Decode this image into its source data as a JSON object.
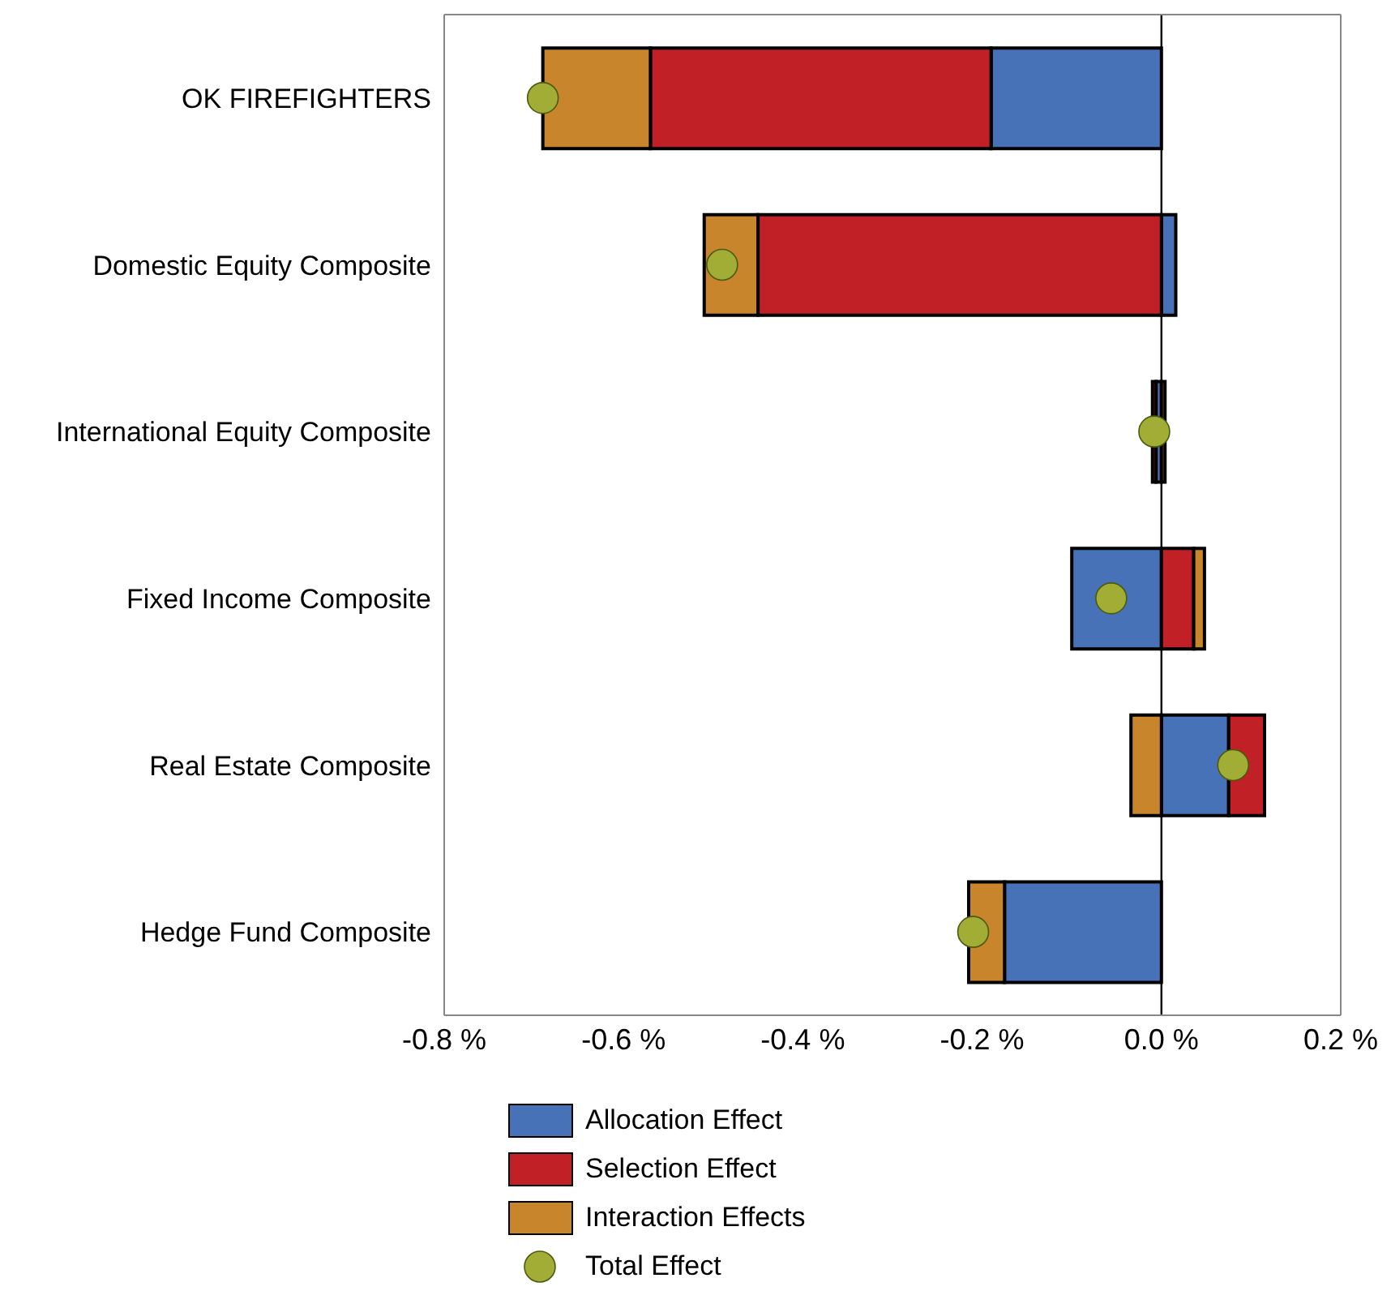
{
  "chart_data": {
    "type": "bar",
    "orientation": "horizontal",
    "stacked": true,
    "categories": [
      "OK FIREFIGHTERS",
      "Domestic Equity Composite",
      "International Equity Composite",
      "Fixed Income Composite",
      "Real Estate Composite",
      "Hedge Fund Composite"
    ],
    "series": [
      {
        "name": "Allocation Effect",
        "color": "#4872b8",
        "values": [
          -0.19,
          0.016,
          -0.006,
          -0.1,
          0.075,
          -0.175
        ]
      },
      {
        "name": "Selection Effect",
        "color": "#c02026",
        "values": [
          -0.38,
          -0.45,
          -0.004,
          0.036,
          0.04,
          0
        ]
      },
      {
        "name": "Interaction Effects",
        "color": "#c8852b",
        "values": [
          -0.12,
          -0.06,
          0.004,
          0.012,
          -0.034,
          -0.04
        ]
      },
      {
        "name": "Total Effect",
        "type": "scatter",
        "color": "#a2ad36",
        "marker": "circle",
        "values": [
          -0.69,
          -0.49,
          -0.008,
          -0.056,
          0.08,
          -0.21
        ]
      }
    ],
    "xlim": [
      -0.8,
      0.2
    ],
    "xticks": [
      {
        "value": -0.8,
        "label": "-0.8 %"
      },
      {
        "value": -0.6,
        "label": "-0.6 %"
      },
      {
        "value": -0.4,
        "label": "-0.4 %"
      },
      {
        "value": -0.2,
        "label": "-0.2 %"
      },
      {
        "value": 0,
        "label": "0.0 %"
      },
      {
        "value": 0.2,
        "label": "0.2 %"
      }
    ],
    "ref_lines": [
      {
        "axis": "x",
        "value": 0,
        "color": "#000000"
      }
    ],
    "legend": "bottom"
  }
}
